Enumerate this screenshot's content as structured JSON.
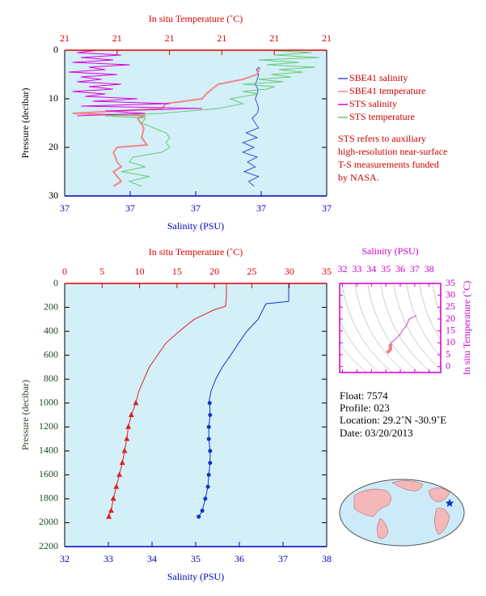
{
  "chart_data": [
    {
      "type": "profile",
      "x_label": "Salinity (PSU)",
      "x2_label": "In situ Temperature (˚C)",
      "y_label": "Pressure (decibar)",
      "x_color": "#0000bb",
      "x2_color": "#dd0000",
      "y_color": "#000000",
      "background": "#d3eff8",
      "xlim": [
        36.6,
        37.0
      ],
      "xticks": [
        {
          "value": 36.6,
          "label": "37"
        },
        {
          "value": 36.7,
          "label": "37"
        },
        {
          "value": 36.8,
          "label": "37"
        },
        {
          "value": 36.9,
          "label": "37"
        },
        {
          "value": 37.0,
          "label": "37"
        }
      ],
      "x2lim": [
        20.6,
        21.1
      ],
      "x2ticks": [
        {
          "value": 20.6,
          "label": "21"
        },
        {
          "value": 20.7,
          "label": "21"
        },
        {
          "value": 20.8,
          "label": "21"
        },
        {
          "value": 20.9,
          "label": "21"
        },
        {
          "value": 21.0,
          "label": "21"
        },
        {
          "value": 21.1,
          "label": "21"
        }
      ],
      "ylim": [
        0,
        30
      ],
      "yticks": [
        0,
        10,
        20,
        30
      ],
      "legend": "right",
      "note": [
        "STS refers to auxiliary",
        "high-resolution near-surface",
        "T-S measurements funded",
        "by NASA."
      ],
      "series": [
        {
          "name": "SBE41 salinity",
          "color": "#3355cc",
          "axis": "x",
          "pressure": [
            3.5,
            4,
            5,
            6,
            7,
            8,
            9,
            10,
            11,
            12,
            13,
            14,
            15,
            16,
            17,
            18,
            19,
            20,
            21,
            22,
            23,
            24,
            25,
            26,
            27,
            28
          ],
          "values": [
            36.896,
            36.893,
            36.896,
            36.894,
            36.891,
            36.895,
            36.894,
            36.891,
            36.894,
            36.896,
            36.894,
            36.886,
            36.891,
            36.896,
            36.877,
            36.894,
            36.872,
            36.889,
            36.872,
            36.894,
            36.879,
            36.891,
            36.874,
            36.896,
            36.881,
            36.889
          ]
        },
        {
          "name": "SBE41 temperature",
          "color": "#f08888",
          "axis": "x2",
          "line_width": 2,
          "pressure": [
            3.5,
            5,
            6,
            7,
            8,
            9,
            10,
            11,
            12,
            13,
            13.5,
            14,
            16,
            18,
            19.5,
            20,
            21,
            23,
            24,
            25,
            26,
            27,
            28
          ],
          "values": [
            20.973,
            20.967,
            20.94,
            20.893,
            20.881,
            20.87,
            20.862,
            20.793,
            20.785,
            20.615,
            20.754,
            20.739,
            20.751,
            20.747,
            20.757,
            20.7,
            20.693,
            20.7,
            20.708,
            20.693,
            20.7,
            20.708,
            20.693
          ]
        },
        {
          "name": "STS salinity",
          "color": "#dd00dd",
          "axis": "x",
          "pressure": [
            0,
            0.5,
            1,
            1.5,
            2,
            2.5,
            3,
            3.5,
            4,
            4.5,
            5,
            5.5,
            6,
            6.5,
            7,
            7.5,
            8,
            8.5,
            9,
            9.5,
            10,
            10.5,
            11,
            11.5,
            12,
            12.5,
            13,
            13.5
          ],
          "values": [
            36.649,
            36.619,
            36.686,
            36.625,
            36.674,
            36.612,
            36.699,
            36.637,
            36.662,
            36.606,
            36.68,
            36.625,
            36.656,
            36.619,
            36.686,
            36.637,
            36.674,
            36.612,
            36.662,
            36.631,
            36.711,
            36.643,
            36.76,
            36.625,
            36.81,
            36.662,
            36.723,
            36.619
          ]
        },
        {
          "name": "STS temperature",
          "color": "#66cc77",
          "axis": "x2",
          "pressure": [
            0,
            0.5,
            1,
            1.5,
            2,
            2.5,
            3,
            3.5,
            4,
            4.5,
            5,
            5.5,
            6,
            6.5,
            7,
            7.5,
            8,
            8.5,
            9,
            10,
            11,
            12,
            13,
            13.5,
            14,
            15,
            16,
            17,
            18,
            19,
            20,
            21,
            22,
            23,
            24,
            25,
            26,
            27,
            28
          ],
          "values": [
            20.986,
            21.071,
            21.001,
            21.086,
            20.97,
            21.048,
            20.986,
            21.078,
            21.009,
            21.055,
            20.994,
            21.032,
            20.97,
            21.017,
            20.94,
            21.001,
            20.986,
            20.94,
            20.97,
            20.916,
            20.94,
            20.893,
            20.785,
            20.677,
            20.754,
            20.747,
            20.77,
            20.793,
            20.801,
            20.793,
            20.801,
            20.785,
            20.731,
            20.723,
            20.754,
            20.708,
            20.762,
            20.723,
            20.747
          ]
        }
      ]
    },
    {
      "type": "profile",
      "x_label": "Salinity (PSU)",
      "x2_label": "In situ Temperature (˚C)",
      "y_label": "Pressure (decibar)",
      "x_color": "#0000bb",
      "x2_color": "#dd0000",
      "y_color": "#224422",
      "background": "#d3eff8",
      "xlim": [
        32,
        38
      ],
      "xticks": [
        32,
        33,
        34,
        35,
        36,
        37,
        38
      ],
      "x2lim": [
        0,
        35
      ],
      "x2ticks": [
        0,
        5,
        10,
        15,
        20,
        25,
        30,
        35
      ],
      "ylim": [
        0,
        2200
      ],
      "yticks": [
        0,
        200,
        400,
        600,
        800,
        1000,
        1200,
        1400,
        1600,
        1800,
        2000,
        2200
      ],
      "series": [
        {
          "color": "#dd2222",
          "axis": "x2",
          "pressure": [
            0,
            100,
            190,
            220,
            300,
            400,
            500,
            600,
            700,
            800,
            900,
            1000
          ],
          "values": [
            21.6,
            21.6,
            21.5,
            20.0,
            17.3,
            15.3,
            13.5,
            12.4,
            11.3,
            10.6,
            9.9,
            9.5
          ]
        },
        {
          "color": "#dd2222",
          "axis": "x2",
          "marker": "triangle",
          "pressure": [
            1000,
            1100,
            1200,
            1300,
            1400,
            1500,
            1600,
            1700,
            1800,
            1900,
            1950
          ],
          "values": [
            9.5,
            8.9,
            8.5,
            8.3,
            8.0,
            7.7,
            7.3,
            6.9,
            6.5,
            6.2,
            5.9
          ]
        },
        {
          "color": "#1133cc",
          "axis": "x",
          "pressure": [
            0,
            100,
            150,
            170,
            300,
            400,
            500,
            600,
            700,
            800,
            900,
            1000
          ],
          "values": [
            37.13,
            37.13,
            37.13,
            36.61,
            36.43,
            36.17,
            35.98,
            35.8,
            35.61,
            35.46,
            35.35,
            35.3
          ]
        },
        {
          "color": "#1133cc",
          "axis": "x",
          "marker": "circle",
          "pressure": [
            1000,
            1100,
            1200,
            1300,
            1400,
            1500,
            1600,
            1700,
            1800,
            1900,
            1950
          ],
          "values": [
            35.32,
            35.33,
            35.3,
            35.3,
            35.33,
            35.33,
            35.3,
            35.28,
            35.22,
            35.15,
            35.07
          ]
        }
      ]
    },
    {
      "type": "line",
      "x_label": "Salinity (PSU)",
      "y_label": "In situ Temperature (˚C)",
      "axis_color": "#cc00cc",
      "background": "#ffffff",
      "xlim": [
        31.8,
        38.8
      ],
      "xticks": [
        32,
        33,
        34,
        35,
        36,
        37,
        38
      ],
      "ylim": [
        -2.5,
        35
      ],
      "yticks": [
        0,
        5,
        10,
        15,
        20,
        25,
        30,
        35
      ],
      "series": [
        {
          "color": "#cc44cc",
          "x": [
            37.13,
            36.61,
            36.43,
            36.17,
            35.98,
            35.8,
            35.61,
            35.46,
            35.35,
            35.3
          ],
          "values": [
            21.6,
            20.0,
            17.3,
            15.3,
            13.5,
            12.4,
            11.3,
            10.6,
            9.9,
            9.5
          ]
        },
        {
          "color": "#f08080",
          "line_width": 4,
          "x": [
            35.32,
            35.33,
            35.3,
            35.3,
            35.33,
            35.33,
            35.3,
            35.28,
            35.22,
            35.15,
            35.07
          ],
          "values": [
            9.5,
            8.9,
            8.5,
            8.3,
            8.0,
            7.7,
            7.3,
            6.9,
            6.5,
            6.2,
            5.9
          ]
        }
      ]
    }
  ],
  "info": [
    "Float:  7574",
    "Profile:  023",
    "Location:  29.2˚N  -30.9˚E",
    "Date:  03/20/2013"
  ]
}
